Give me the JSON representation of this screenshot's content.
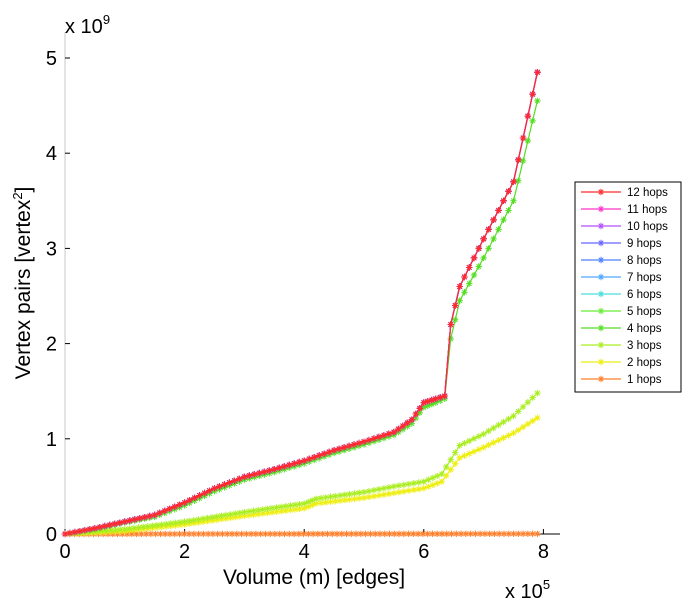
{
  "chart_data": {
    "type": "line",
    "xlabel": "Volume (m) [edges]",
    "ylabel_pre": "Vertex pairs [vertex",
    "ylabel_sup": "2",
    "ylabel_post": "]",
    "x_multiplier": {
      "base": "x 10",
      "exponent": "5"
    },
    "y_multiplier": {
      "base": "x 10",
      "exponent": "9"
    },
    "xlim": [
      0,
      8.3
    ],
    "ylim": [
      0,
      5
    ],
    "x_ticks": [
      0,
      2,
      4,
      6,
      8
    ],
    "x_tick_labels": [
      "0",
      "2",
      "4",
      "6",
      "8"
    ],
    "y_ticks": [
      0,
      1,
      2,
      3,
      4,
      5
    ],
    "y_tick_labels": [
      "0",
      "1",
      "2",
      "3",
      "4",
      "5"
    ],
    "x_units": "x 1e5 edges",
    "y_units": "x 1e9 vertex pairs",
    "grid": false,
    "legend_position": "right",
    "series": [
      {
        "name": "12 hops",
        "color": "#ff2a2a",
        "profile": "full"
      },
      {
        "name": "11 hops",
        "color": "#ff33cc",
        "profile": "full"
      },
      {
        "name": "10 hops",
        "color": "#b34dff",
        "profile": "full"
      },
      {
        "name": "9 hops",
        "color": "#6666ff",
        "profile": "full"
      },
      {
        "name": "8 hops",
        "color": "#4d80ff",
        "profile": "full"
      },
      {
        "name": "7 hops",
        "color": "#4da6ff",
        "profile": "full"
      },
      {
        "name": "6 hops",
        "color": "#4ddcdc",
        "profile": "full"
      },
      {
        "name": "5 hops",
        "color": "#66ee33",
        "profile": "full"
      },
      {
        "name": "4 hops",
        "color": "#55dd22",
        "profile": "full_low"
      },
      {
        "name": "3 hops",
        "color": "#aaee22",
        "profile": "three"
      },
      {
        "name": "2 hops",
        "color": "#eeee11",
        "profile": "two"
      },
      {
        "name": "1 hops",
        "color": "#ff7f2a",
        "profile": "one"
      }
    ],
    "profiles": {
      "full": [
        [
          0,
          0
        ],
        [
          0.5,
          0.06
        ],
        [
          1,
          0.13
        ],
        [
          1.5,
          0.2
        ],
        [
          2,
          0.33
        ],
        [
          2.5,
          0.48
        ],
        [
          3,
          0.6
        ],
        [
          3.5,
          0.68
        ],
        [
          4,
          0.77
        ],
        [
          4.5,
          0.88
        ],
        [
          5,
          0.97
        ],
        [
          5.5,
          1.07
        ],
        [
          5.8,
          1.2
        ],
        [
          6,
          1.38
        ],
        [
          6.2,
          1.42
        ],
        [
          6.35,
          1.45
        ],
        [
          6.45,
          2.2
        ],
        [
          6.6,
          2.6
        ],
        [
          7,
          3.1
        ],
        [
          7.5,
          3.7
        ],
        [
          7.9,
          4.85
        ]
      ],
      "full_low": [
        [
          0,
          0
        ],
        [
          0.5,
          0.05
        ],
        [
          1,
          0.12
        ],
        [
          1.5,
          0.18
        ],
        [
          2,
          0.3
        ],
        [
          2.5,
          0.45
        ],
        [
          3,
          0.57
        ],
        [
          3.5,
          0.65
        ],
        [
          4,
          0.74
        ],
        [
          4.5,
          0.85
        ],
        [
          5,
          0.94
        ],
        [
          5.5,
          1.04
        ],
        [
          5.8,
          1.16
        ],
        [
          6,
          1.33
        ],
        [
          6.2,
          1.38
        ],
        [
          6.35,
          1.42
        ],
        [
          6.45,
          2.05
        ],
        [
          6.6,
          2.45
        ],
        [
          7,
          2.9
        ],
        [
          7.5,
          3.5
        ],
        [
          7.9,
          4.55
        ]
      ],
      "three": [
        [
          0,
          0
        ],
        [
          1,
          0.05
        ],
        [
          2,
          0.13
        ],
        [
          3,
          0.23
        ],
        [
          4,
          0.32
        ],
        [
          4.2,
          0.37
        ],
        [
          5,
          0.44
        ],
        [
          5.5,
          0.5
        ],
        [
          6,
          0.55
        ],
        [
          6.3,
          0.63
        ],
        [
          6.6,
          0.93
        ],
        [
          7,
          1.05
        ],
        [
          7.5,
          1.24
        ],
        [
          7.9,
          1.48
        ]
      ],
      "two": [
        [
          0,
          0
        ],
        [
          1,
          0.03
        ],
        [
          2,
          0.1
        ],
        [
          3,
          0.19
        ],
        [
          4,
          0.27
        ],
        [
          4.2,
          0.32
        ],
        [
          5,
          0.38
        ],
        [
          5.5,
          0.43
        ],
        [
          6,
          0.48
        ],
        [
          6.3,
          0.55
        ],
        [
          6.6,
          0.8
        ],
        [
          7,
          0.91
        ],
        [
          7.5,
          1.06
        ],
        [
          7.9,
          1.22
        ]
      ],
      "one": [
        [
          0,
          0
        ],
        [
          7.9,
          0.002
        ]
      ]
    }
  }
}
